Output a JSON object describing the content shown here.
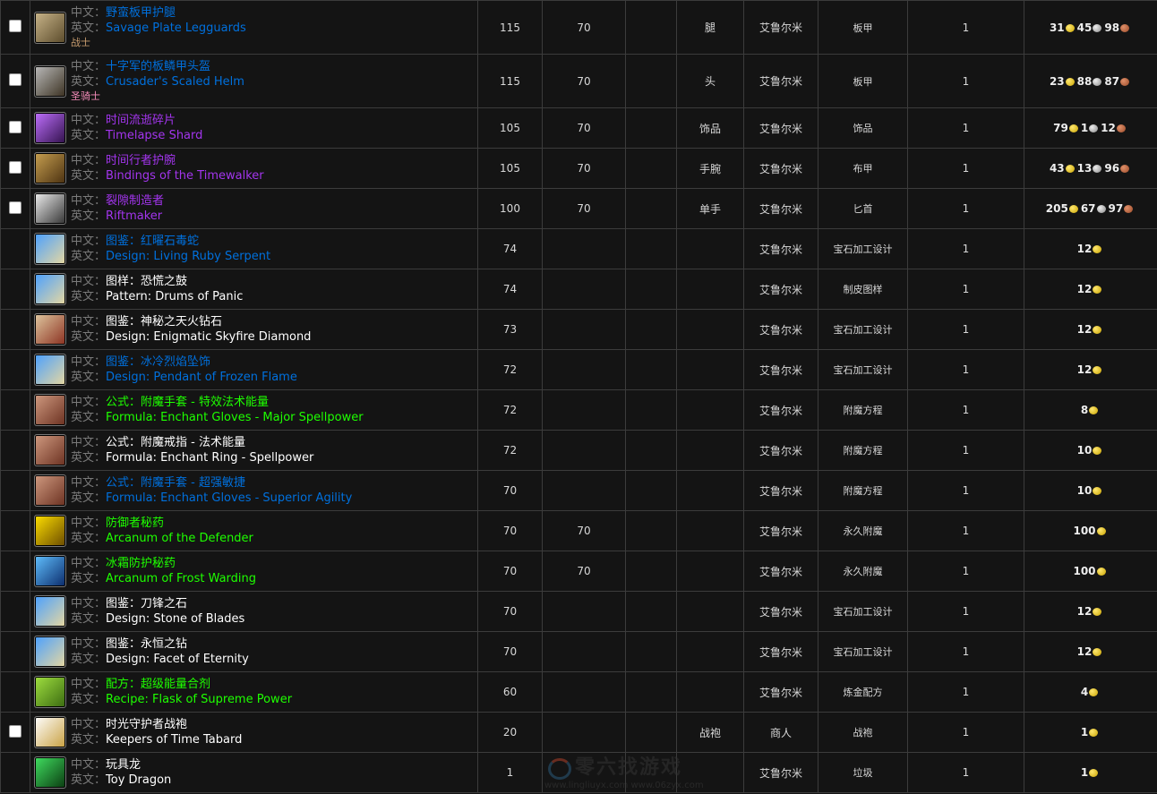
{
  "labels": {
    "cn": "中文：",
    "en": "英文："
  },
  "colors": {
    "blue": "#0070dd",
    "purple": "#a335ee",
    "green": "#1eff00",
    "white": "#ffffff",
    "warrior": "#c79c6e",
    "paladin": "#f58cba"
  },
  "rows": [
    {
      "check": true,
      "icon": "legguards-icon",
      "ic": [
        "#c9b58a",
        "#5a4a2a"
      ],
      "cn": "野蛮板甲护腿",
      "en": "Savage Plate Legguards",
      "q": "blue",
      "cls": "战士",
      "clsc": "warrior",
      "lvl": "115",
      "req": "70",
      "slot": "腿",
      "src": "艾鲁尔米",
      "type": "板甲",
      "num": "1",
      "price": [
        [
          "31",
          "g"
        ],
        [
          "45",
          "s"
        ],
        [
          "98",
          "c"
        ]
      ]
    },
    {
      "check": true,
      "icon": "helm-icon",
      "ic": [
        "#bbb",
        "#3a3020"
      ],
      "cn": "十字军的板鳞甲头盔",
      "en": "Crusader's Scaled Helm",
      "q": "blue",
      "cls": "圣骑士",
      "clsc": "paladin",
      "lvl": "115",
      "req": "70",
      "slot": "头",
      "src": "艾鲁尔米",
      "type": "板甲",
      "num": "1",
      "price": [
        [
          "23",
          "g"
        ],
        [
          "88",
          "s"
        ],
        [
          "87",
          "c"
        ]
      ]
    },
    {
      "check": true,
      "icon": "shard-icon",
      "ic": [
        "#c070ff",
        "#30104a"
      ],
      "cn": "时间流逝碎片",
      "en": "Timelapse Shard",
      "q": "purple",
      "lvl": "105",
      "req": "70",
      "slot": "饰品",
      "src": "艾鲁尔米",
      "type": "饰品",
      "num": "1",
      "price": [
        [
          "79",
          "g"
        ],
        [
          "1",
          "s"
        ],
        [
          "12",
          "c"
        ]
      ]
    },
    {
      "check": true,
      "icon": "bracer-icon",
      "ic": [
        "#c8a050",
        "#4a3010"
      ],
      "cn": "时间行者护腕",
      "en": "Bindings of the Timewalker",
      "q": "purple",
      "lvl": "105",
      "req": "70",
      "slot": "手腕",
      "src": "艾鲁尔米",
      "type": "布甲",
      "num": "1",
      "price": [
        [
          "43",
          "g"
        ],
        [
          "13",
          "s"
        ],
        [
          "96",
          "c"
        ]
      ]
    },
    {
      "check": true,
      "icon": "dagger-icon",
      "ic": [
        "#eee",
        "#333"
      ],
      "cn": "裂隙制造者",
      "en": "Riftmaker",
      "q": "purple",
      "lvl": "100",
      "req": "70",
      "slot": "单手",
      "src": "艾鲁尔米",
      "type": "匕首",
      "num": "1",
      "price": [
        [
          "205",
          "g"
        ],
        [
          "67",
          "s"
        ],
        [
          "97",
          "c"
        ]
      ]
    },
    {
      "icon": "scroll-icon",
      "ic": [
        "#4aa0ff",
        "#e8d8a0"
      ],
      "cn": "图鉴：红曜石毒蛇",
      "en": "Design: Living Ruby Serpent",
      "q": "blue",
      "lvl": "74",
      "src": "艾鲁尔米",
      "type": "宝石加工设计",
      "num": "1",
      "price": [
        [
          "12",
          "g"
        ]
      ]
    },
    {
      "icon": "scroll-icon",
      "ic": [
        "#4aa0ff",
        "#e8d8a0"
      ],
      "cn": "图样：恐慌之鼓",
      "en": "Pattern: Drums of Panic",
      "q": "white",
      "lvl": "74",
      "src": "艾鲁尔米",
      "type": "制皮图样",
      "num": "1",
      "price": [
        [
          "12",
          "g"
        ]
      ]
    },
    {
      "icon": "scroll-icon",
      "ic": [
        "#e0c8a0",
        "#8a3020"
      ],
      "cn": "图鉴：神秘之天火钻石",
      "en": "Design: Enigmatic Skyfire Diamond",
      "q": "white",
      "lvl": "73",
      "src": "艾鲁尔米",
      "type": "宝石加工设计",
      "num": "1",
      "price": [
        [
          "12",
          "g"
        ]
      ]
    },
    {
      "icon": "scroll-icon",
      "ic": [
        "#4aa0ff",
        "#e8d8a0"
      ],
      "cn": "图鉴：冰冷烈焰坠饰",
      "en": "Design: Pendant of Frozen Flame",
      "q": "blue",
      "lvl": "72",
      "src": "艾鲁尔米",
      "type": "宝石加工设计",
      "num": "1",
      "price": [
        [
          "12",
          "g"
        ]
      ]
    },
    {
      "icon": "formula-icon",
      "ic": [
        "#d09a80",
        "#6a3020"
      ],
      "cn": "公式：附魔手套 - 特效法术能量",
      "en": "Formula: Enchant Gloves - Major Spellpower",
      "q": "green",
      "lvl": "72",
      "src": "艾鲁尔米",
      "type": "附魔方程",
      "num": "1",
      "price": [
        [
          "8",
          "g"
        ]
      ]
    },
    {
      "icon": "formula-icon",
      "ic": [
        "#d09a80",
        "#6a3020"
      ],
      "cn": "公式：附魔戒指 - 法术能量",
      "en": "Formula: Enchant Ring - Spellpower",
      "q": "white",
      "lvl": "72",
      "src": "艾鲁尔米",
      "type": "附魔方程",
      "num": "1",
      "price": [
        [
          "10",
          "g"
        ]
      ]
    },
    {
      "icon": "formula-icon",
      "ic": [
        "#d09a80",
        "#6a3020"
      ],
      "cn": "公式：附魔手套 - 超强敏捷",
      "en": "Formula: Enchant Gloves - Superior Agility",
      "q": "blue",
      "lvl": "70",
      "src": "艾鲁尔米",
      "type": "附魔方程",
      "num": "1",
      "price": [
        [
          "10",
          "g"
        ]
      ]
    },
    {
      "icon": "arcanum-icon",
      "ic": [
        "#ffe000",
        "#6a4a00"
      ],
      "cn": "防御者秘药",
      "en": "Arcanum of the Defender",
      "q": "green",
      "lvl": "70",
      "req": "70",
      "src": "艾鲁尔米",
      "type": "永久附魔",
      "num": "1",
      "price": [
        [
          "100",
          "g"
        ]
      ]
    },
    {
      "icon": "frost-arcanum-icon",
      "ic": [
        "#60c0ff",
        "#0a2a6a"
      ],
      "cn": "冰霜防护秘药",
      "en": "Arcanum of Frost Warding",
      "q": "green",
      "lvl": "70",
      "req": "70",
      "src": "艾鲁尔米",
      "type": "永久附魔",
      "num": "1",
      "price": [
        [
          "100",
          "g"
        ]
      ]
    },
    {
      "icon": "scroll-icon",
      "ic": [
        "#4aa0ff",
        "#e8d8a0"
      ],
      "cn": "图鉴：刀锋之石",
      "en": "Design: Stone of Blades",
      "q": "white",
      "lvl": "70",
      "src": "艾鲁尔米",
      "type": "宝石加工设计",
      "num": "1",
      "price": [
        [
          "12",
          "g"
        ]
      ]
    },
    {
      "icon": "scroll-icon",
      "ic": [
        "#4aa0ff",
        "#e8d8a0"
      ],
      "cn": "图鉴：永恒之钻",
      "en": "Design: Facet of Eternity",
      "q": "white",
      "lvl": "70",
      "src": "艾鲁尔米",
      "type": "宝石加工设计",
      "num": "1",
      "price": [
        [
          "12",
          "g"
        ]
      ]
    },
    {
      "icon": "recipe-icon",
      "ic": [
        "#a0e040",
        "#3a6a10"
      ],
      "cn": "配方：超级能量合剂",
      "en": "Recipe: Flask of Supreme Power",
      "q": "green",
      "lvl": "60",
      "src": "艾鲁尔米",
      "type": "炼金配方",
      "num": "1",
      "price": [
        [
          "4",
          "g"
        ]
      ]
    },
    {
      "check": true,
      "icon": "tabard-icon",
      "ic": [
        "#ffffff",
        "#c8a040"
      ],
      "cn": "时光守护者战袍",
      "en": "Keepers of Time Tabard",
      "q": "white",
      "lvl": "20",
      "slot": "战袍",
      "src": "商人",
      "type": "战袍",
      "num": "1",
      "price": [
        [
          "1",
          "g"
        ]
      ]
    },
    {
      "icon": "dragon-icon",
      "ic": [
        "#40e060",
        "#0a3a10"
      ],
      "cn": "玩具龙",
      "en": "Toy Dragon",
      "q": "white",
      "lvl": "1",
      "src": "艾鲁尔米",
      "type": "垃圾",
      "num": "1",
      "price": [
        [
          "1",
          "g"
        ]
      ]
    }
  ],
  "watermark": {
    "title": "零六找游戏",
    "urls": "www.lingliuyx.com   www.06zyx.com"
  }
}
